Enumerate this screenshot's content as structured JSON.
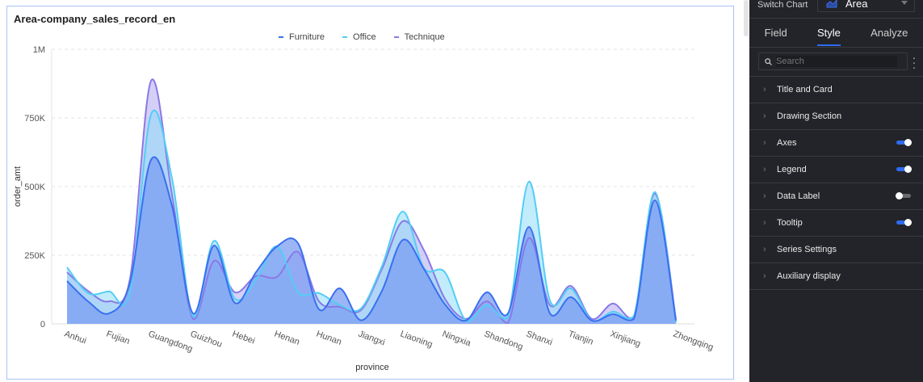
{
  "chart_card": {
    "title": "Area-company_sales_record_en"
  },
  "chart_data": {
    "type": "area",
    "title": "Area-company_sales_record_en",
    "xlabel": "province",
    "ylabel": "order_amt",
    "ylim": [
      0,
      1000000
    ],
    "yticks": [
      0,
      250000,
      500000,
      750000,
      1000000
    ],
    "ytick_labels": [
      "0",
      "250K",
      "500K",
      "750K",
      "1M"
    ],
    "grid": true,
    "legend": "top-center",
    "categories": [
      "Anhui",
      "",
      "Fujian",
      "",
      "Guangdong",
      "",
      "Guizhou",
      "",
      "Hebei",
      "",
      "Henan",
      "",
      "Hunan",
      "",
      "Jiangxi",
      "",
      "Liaoning",
      "",
      "Ningxia",
      "",
      "Shandong",
      "",
      "Shanxi",
      "",
      "Tianjin",
      "",
      "Xinjiang",
      "",
      "",
      "Zhongqing"
    ],
    "series": [
      {
        "name": "Furniture",
        "color": "#3a6ff0",
        "values": [
          156000,
          82000,
          38000,
          150000,
          597000,
          430000,
          38000,
          285000,
          76000,
          188000,
          282000,
          294000,
          53000,
          129000,
          13000,
          120000,
          306000,
          200000,
          71000,
          12000,
          115000,
          38000,
          353000,
          38000,
          97000,
          12000,
          35000,
          18000,
          450000,
          12000
        ]
      },
      {
        "name": "Office",
        "color": "#52cdf6",
        "values": [
          206000,
          112000,
          118000,
          115000,
          762000,
          530000,
          27000,
          302000,
          91000,
          160000,
          282000,
          115000,
          112000,
          68000,
          56000,
          210000,
          409000,
          203000,
          188000,
          12000,
          68000,
          24000,
          518000,
          85000,
          129000,
          12000,
          44000,
          29000,
          480000,
          5000
        ]
      },
      {
        "name": "Technique",
        "color": "#8a79e6",
        "values": [
          188000,
          120000,
          82000,
          165000,
          885000,
          470000,
          18000,
          229000,
          115000,
          174000,
          171000,
          262000,
          82000,
          62000,
          50000,
          200000,
          374000,
          268000,
          91000,
          18000,
          82000,
          3000,
          312000,
          68000,
          138000,
          18000,
          74000,
          26000,
          474000,
          18000
        ]
      }
    ]
  },
  "panel": {
    "switch_chart_label": "Switch Chart",
    "chart_type": "Area",
    "tabs": [
      {
        "label": "Field"
      },
      {
        "label": "Style",
        "active": true
      },
      {
        "label": "Analyze"
      }
    ],
    "search_placeholder": "Search",
    "sections": [
      {
        "label": "Title and Card"
      },
      {
        "label": "Drawing Section"
      },
      {
        "label": "Axes",
        "toggle": true
      },
      {
        "label": "Legend",
        "toggle": true
      },
      {
        "label": "Data Label",
        "toggle": false
      },
      {
        "label": "Tooltip",
        "toggle": true
      },
      {
        "label": "Series Settings"
      },
      {
        "label": "Auxiliary display"
      }
    ]
  }
}
